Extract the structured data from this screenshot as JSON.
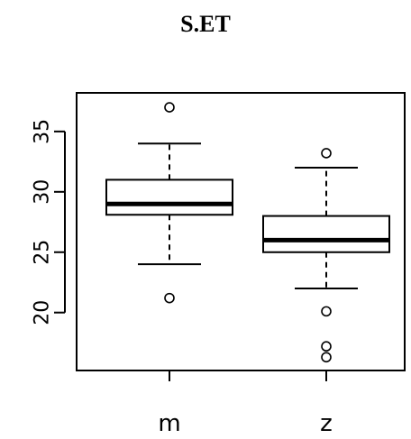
{
  "chart_data": {
    "type": "boxplot",
    "title": "S.ET",
    "xlabel": "",
    "ylabel": "",
    "categories": [
      "m",
      "z"
    ],
    "ylim": [
      15.2,
      38.2
    ],
    "yticks": [
      20,
      25,
      30,
      35
    ],
    "grid": false,
    "series": [
      {
        "category": "m",
        "min": 24,
        "q1": 28.1,
        "median": 29,
        "q3": 31,
        "max": 34,
        "outliers": [
          37,
          21.2
        ]
      },
      {
        "category": "z",
        "min": 22,
        "q1": 25,
        "median": 26,
        "q3": 28,
        "max": 32,
        "outliers": [
          33.2,
          20.1,
          17.2,
          16.3
        ]
      }
    ]
  }
}
